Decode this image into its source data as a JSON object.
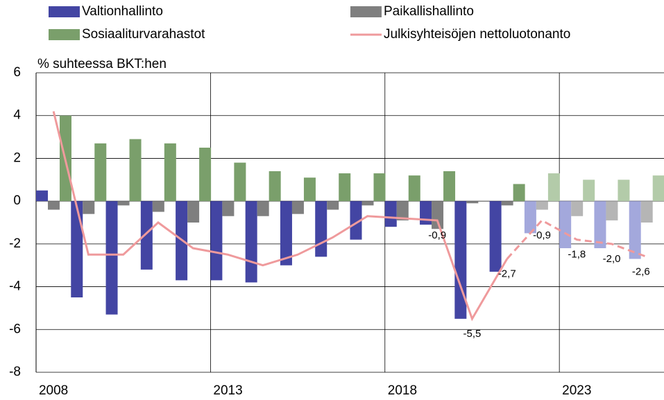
{
  "chart_data": {
    "type": "bar",
    "y_label": "% suhteessa BKT:hen",
    "categories": [
      "2008",
      null,
      null,
      null,
      null,
      "2013",
      null,
      null,
      null,
      null,
      "2018",
      null,
      null,
      null,
      null,
      "2023",
      null,
      null
    ],
    "series": [
      {
        "name": "Valtionhallinto",
        "color": "#4345a3",
        "light_color": "#a3a8dc",
        "values": [
          0.5,
          -4.5,
          -5.3,
          -3.2,
          -3.7,
          -3.7,
          -3.8,
          -3.0,
          -2.6,
          -1.8,
          -1.2,
          -1.1,
          -5.5,
          -3.3,
          -1.5,
          -2.2,
          -2.2,
          -2.7
        ]
      },
      {
        "name": "Paikallishallinto",
        "color": "#7f7f7f",
        "light_color": "#b5b5b5",
        "values": [
          -0.4,
          -0.6,
          -0.2,
          -0.5,
          -1.0,
          -0.7,
          -0.7,
          -0.6,
          -0.4,
          -0.2,
          -0.9,
          -1.3,
          -0.1,
          -0.2,
          -0.4,
          -0.7,
          -0.9,
          -1.0
        ]
      },
      {
        "name": "Sosiaaliturvarahastot",
        "color": "#7a9f6b",
        "light_color": "#b3cba9",
        "values": [
          4.0,
          2.7,
          2.9,
          2.7,
          2.5,
          1.8,
          1.4,
          1.1,
          1.3,
          1.3,
          1.2,
          1.4,
          0.0,
          0.8,
          1.3,
          1.0,
          1.0,
          1.2
        ]
      },
      {
        "name": "Julkisyhteisöjen nettoluotonanto",
        "type": "line",
        "color": "#ef9a9c",
        "values": [
          4.2,
          -2.5,
          -2.5,
          -1.0,
          -2.2,
          -2.5,
          -3.0,
          -2.5,
          -1.7,
          -0.7,
          -0.8,
          -0.9,
          -5.5,
          -2.7,
          -0.9,
          -1.8,
          -2.0,
          -2.6
        ],
        "value_labels": [
          null,
          null,
          null,
          null,
          null,
          null,
          null,
          null,
          null,
          null,
          null,
          "-0,9",
          "-5,5",
          "-2,7",
          "-0,9",
          "-1,8",
          "-2,0",
          "-2,6"
        ]
      }
    ],
    "forecast_start": 13,
    "ylim": [
      -8,
      6
    ],
    "yticks": [
      -8,
      -6,
      -4,
      -2,
      0,
      2,
      4,
      6
    ],
    "grid": true
  }
}
